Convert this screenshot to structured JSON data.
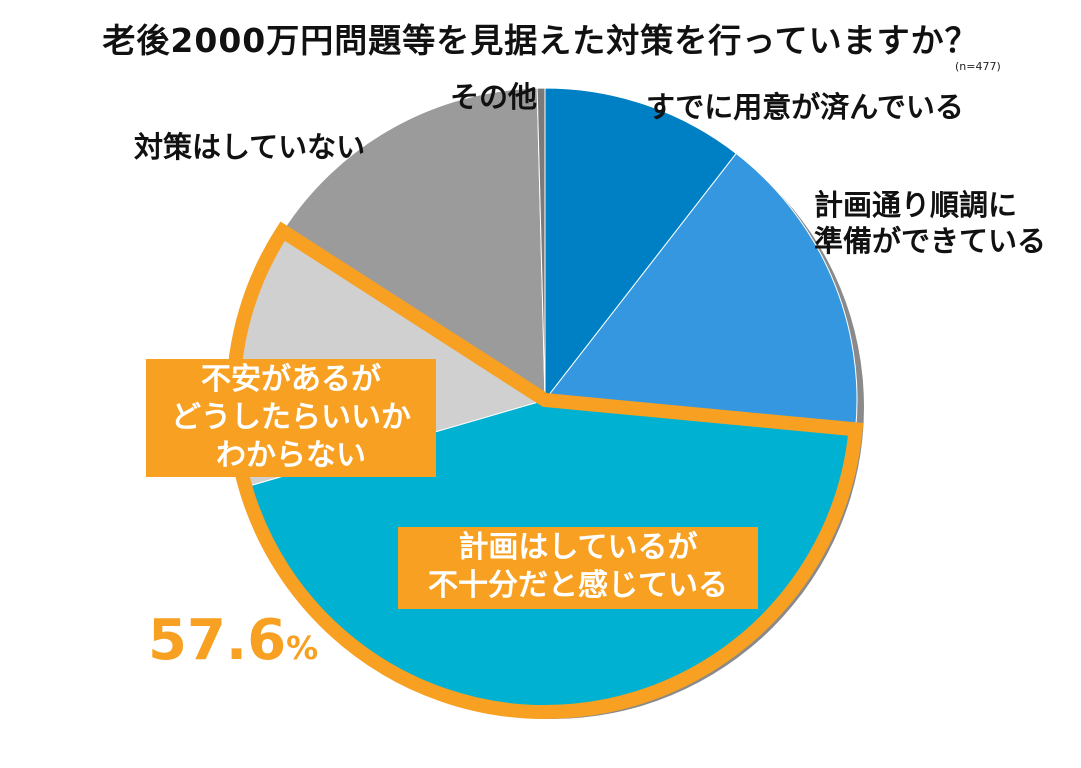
{
  "chart_data": {
    "type": "pie",
    "title": "老後2000万円問題等を見据えた対策を行っていますか？",
    "n_label": "(n=477)",
    "slices": [
      {
        "label": "すでに用意が済んでいる",
        "value": 10.5,
        "color": "#0080c4"
      },
      {
        "label": "計画通り順調に準備ができている",
        "value": 16.0,
        "color": "#3497e0"
      },
      {
        "label": "計画はしているが不十分だと感じている",
        "value": 44.0,
        "color": "#00b1d2"
      },
      {
        "label": "不安があるがどうしたらいいかわからない",
        "value": 13.6,
        "color": "#d0d0d0"
      },
      {
        "label": "対策はしていない",
        "value": 15.5,
        "color": "#9b9b9b"
      },
      {
        "label": "その他",
        "value": 0.4,
        "color": "#7a7a7a"
      }
    ],
    "highlight": {
      "slices": [
        "計画はしているが不十分だと感じている",
        "不安があるがどうしたらいいかわからない"
      ],
      "border_color": "#f7a021",
      "value_text": "57.6",
      "unit_text": "%"
    }
  },
  "labels": {
    "already_prepared": "すでに用意が済んでいる",
    "on_track_line1": "計画通り順調に",
    "on_track_line2": "準備ができている",
    "insufficient_line1": "計画はしているが",
    "insufficient_line2": "不十分だと感じている",
    "anxious_line1": "不安があるが",
    "anxious_line2": "どうしたらいいか",
    "anxious_line3": "わからない",
    "no_measures": "対策はしていない",
    "other": "その他"
  }
}
